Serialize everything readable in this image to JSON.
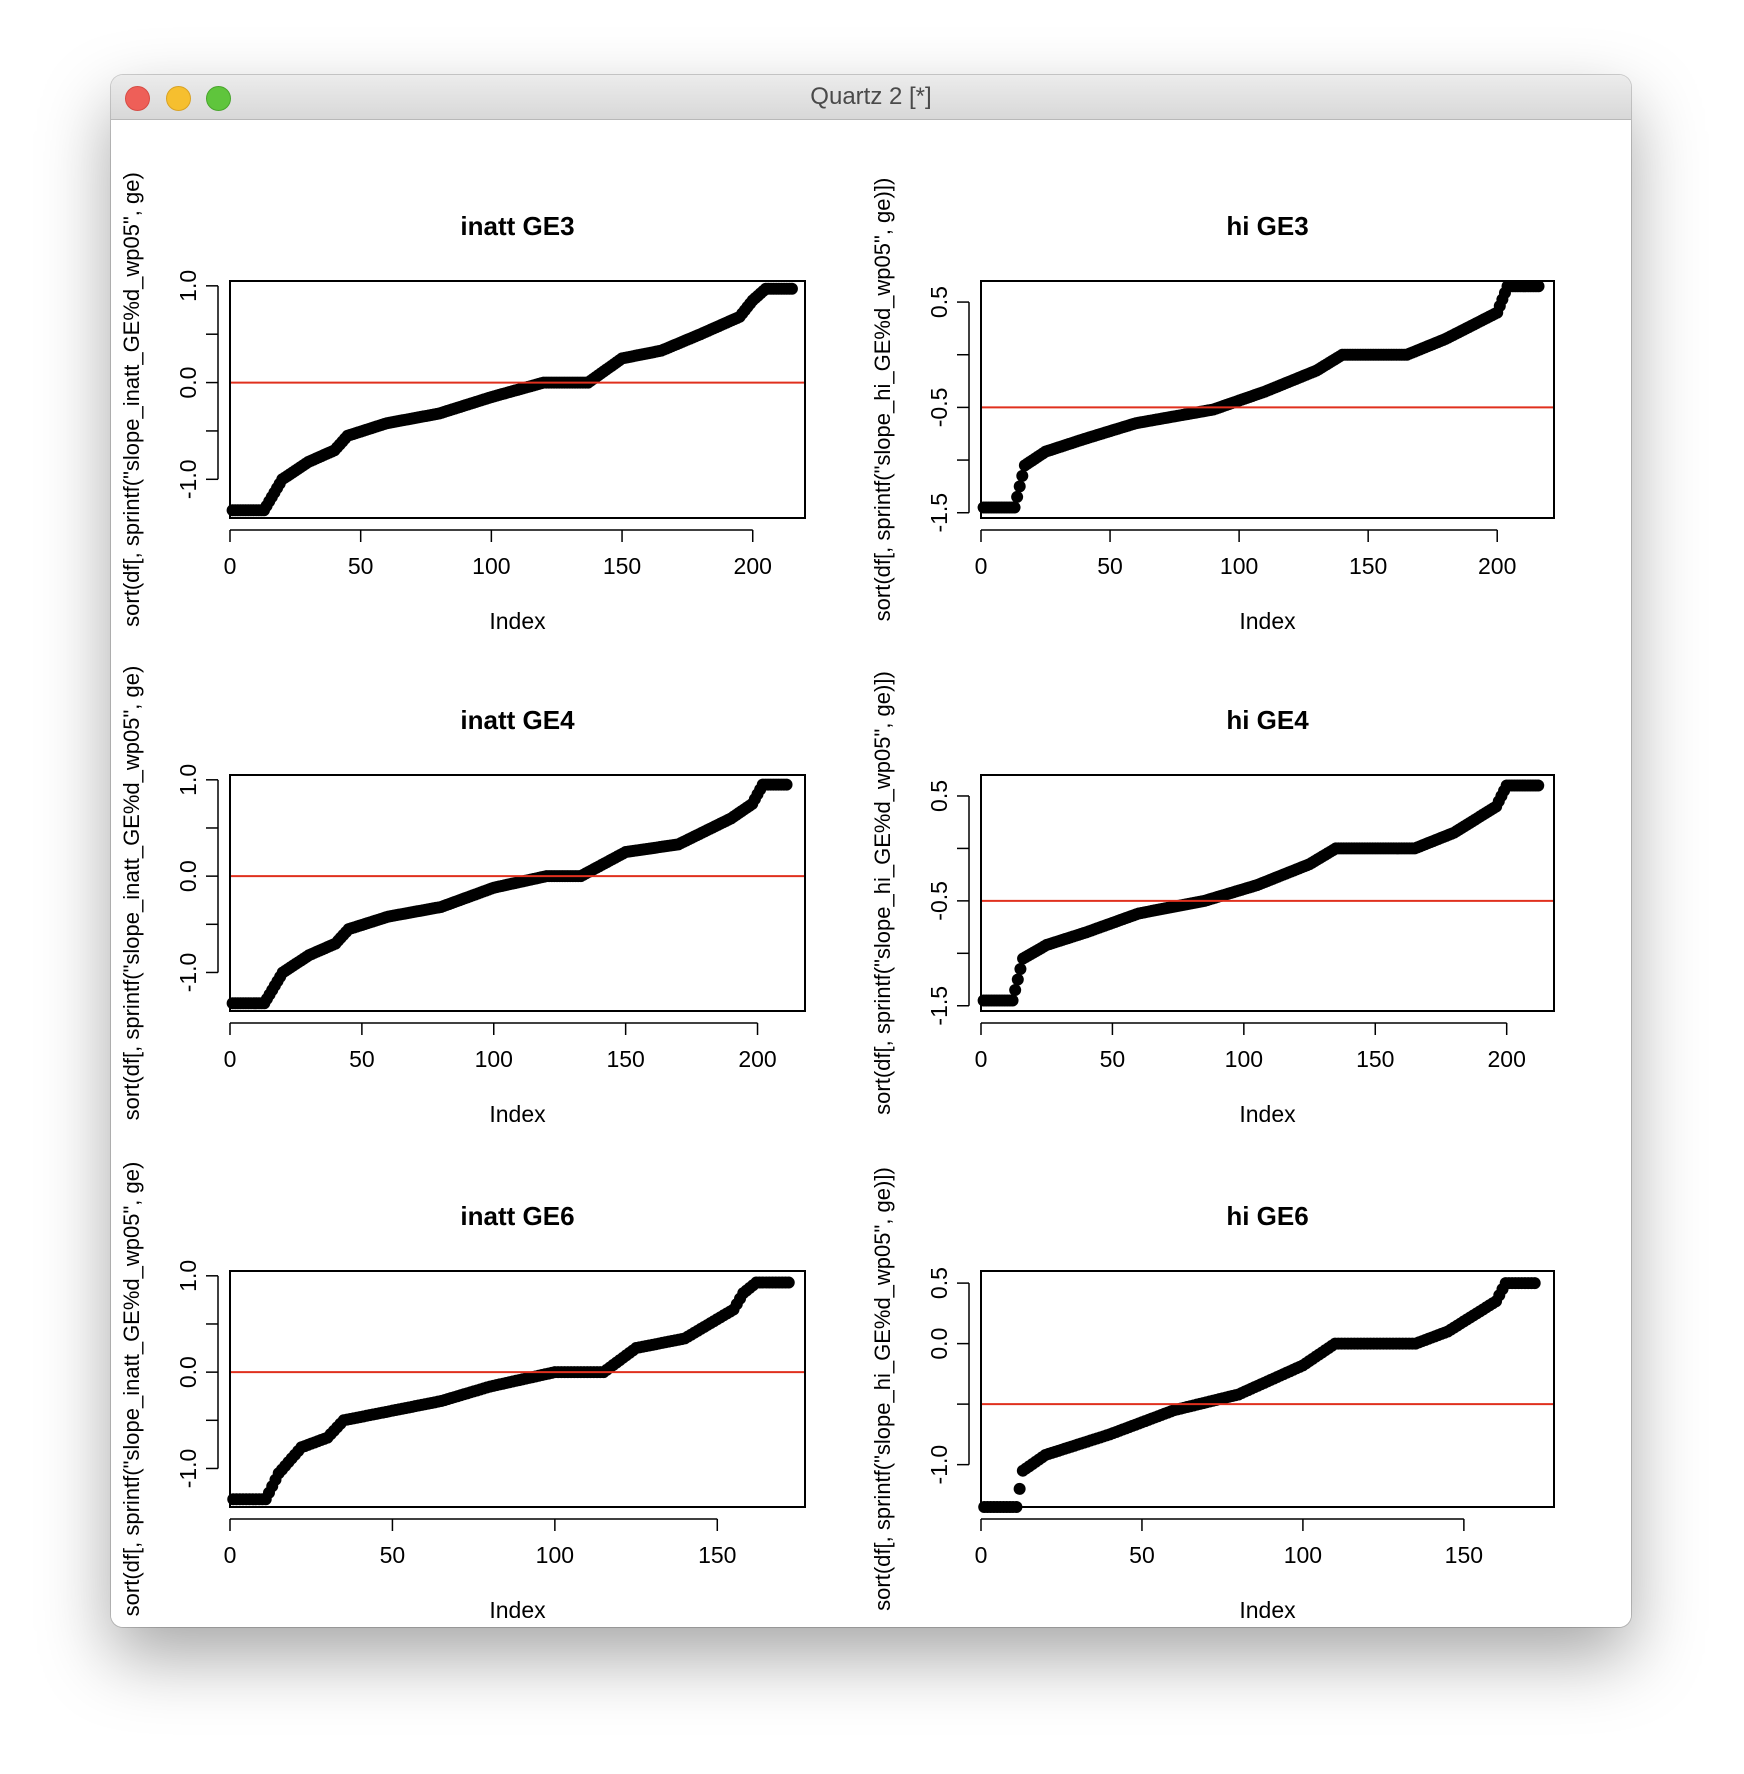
{
  "window": {
    "title": "Quartz 2 [*]"
  },
  "chart_data": [
    {
      "type": "scatter",
      "title": "inatt GE3",
      "xlabel": "Index",
      "ylabel": "sort(df[, sprintf(\"slope_inatt_GE%d_wp05\", ge)",
      "xlim": [
        0,
        220
      ],
      "ylim": [
        -1.4,
        1.05
      ],
      "xticks": [
        0,
        50,
        100,
        150,
        200
      ],
      "yticks": [
        -1.0,
        -0.5,
        0.0,
        0.5,
        1.0
      ],
      "ytick_labels": [
        "-1.0",
        "",
        "0.0",
        "",
        "1.0"
      ],
      "hline": 0.0,
      "hline_color": "#e0301e",
      "n": 215,
      "curve_x": [
        1,
        13,
        20,
        30,
        40,
        45,
        60,
        80,
        100,
        120,
        137,
        150,
        165,
        180,
        195,
        200,
        205,
        215
      ],
      "curve_y": [
        -1.32,
        -1.32,
        -1.0,
        -0.82,
        -0.7,
        -0.55,
        -0.42,
        -0.32,
        -0.15,
        0.0,
        0.0,
        0.25,
        0.33,
        0.5,
        0.68,
        0.85,
        0.97,
        0.97
      ]
    },
    {
      "type": "scatter",
      "title": "hi GE3",
      "xlabel": "Index",
      "ylabel": "sort(df[, sprintf(\"slope_hi_GE%d_wp05\", ge)])",
      "xlim": [
        0,
        222
      ],
      "ylim": [
        -1.55,
        0.7
      ],
      "xticks": [
        0,
        50,
        100,
        150,
        200
      ],
      "yticks": [
        -1.5,
        -1.0,
        -0.5,
        0.0,
        0.5
      ],
      "ytick_labels": [
        "-1.5",
        "",
        "-0.5",
        "",
        "0.5"
      ],
      "hline": -0.5,
      "hline_color": "#e0301e",
      "n": 216,
      "curve_x": [
        1,
        13,
        17,
        25,
        40,
        60,
        90,
        110,
        130,
        140,
        165,
        180,
        200,
        204,
        216
      ],
      "curve_y": [
        -1.45,
        -1.45,
        -1.05,
        -0.92,
        -0.8,
        -0.65,
        -0.52,
        -0.35,
        -0.15,
        0.0,
        0.0,
        0.15,
        0.4,
        0.65,
        0.65
      ]
    },
    {
      "type": "scatter",
      "title": "inatt GE4",
      "xlabel": "Index",
      "ylabel": "sort(df[, sprintf(\"slope_inatt_GE%d_wp05\", ge)",
      "xlim": [
        0,
        218
      ],
      "ylim": [
        -1.4,
        1.05
      ],
      "xticks": [
        0,
        50,
        100,
        150,
        200
      ],
      "yticks": [
        -1.0,
        -0.5,
        0.0,
        0.5,
        1.0
      ],
      "ytick_labels": [
        "-1.0",
        "",
        "0.0",
        "",
        "1.0"
      ],
      "hline": 0.0,
      "hline_color": "#e0301e",
      "n": 211,
      "curve_x": [
        1,
        13,
        20,
        30,
        40,
        45,
        60,
        80,
        100,
        120,
        133,
        150,
        170,
        190,
        198,
        202,
        211
      ],
      "curve_y": [
        -1.32,
        -1.32,
        -1.0,
        -0.82,
        -0.7,
        -0.55,
        -0.42,
        -0.32,
        -0.12,
        0.0,
        0.0,
        0.25,
        0.33,
        0.6,
        0.75,
        0.95,
        0.95
      ]
    },
    {
      "type": "scatter",
      "title": "hi GE4",
      "xlabel": "Index",
      "ylabel": "sort(df[, sprintf(\"slope_hi_GE%d_wp05\", ge)])",
      "xlim": [
        0,
        218
      ],
      "ylim": [
        -1.55,
        0.7
      ],
      "xticks": [
        0,
        50,
        100,
        150,
        200
      ],
      "yticks": [
        -1.5,
        -1.0,
        -0.5,
        0.0,
        0.5
      ],
      "ytick_labels": [
        "-1.5",
        "",
        "-0.5",
        "",
        "0.5"
      ],
      "hline": -0.5,
      "hline_color": "#e0301e",
      "n": 212,
      "curve_x": [
        1,
        12,
        16,
        25,
        40,
        60,
        85,
        105,
        125,
        135,
        165,
        180,
        196,
        200,
        212
      ],
      "curve_y": [
        -1.45,
        -1.45,
        -1.05,
        -0.92,
        -0.8,
        -0.62,
        -0.5,
        -0.35,
        -0.15,
        0.0,
        0.0,
        0.15,
        0.4,
        0.6,
        0.6
      ]
    },
    {
      "type": "scatter",
      "title": "inatt GE6",
      "xlabel": "Index",
      "ylabel": "sort(df[, sprintf(\"slope_inatt_GE%d_wp05\", ge)",
      "xlim": [
        0,
        177
      ],
      "ylim": [
        -1.4,
        1.05
      ],
      "xticks": [
        0,
        50,
        100,
        150
      ],
      "yticks": [
        -1.0,
        -0.5,
        0.0,
        0.5,
        1.0
      ],
      "ytick_labels": [
        "-1.0",
        "",
        "0.0",
        "",
        "1.0"
      ],
      "hline": 0.0,
      "hline_color": "#e0301e",
      "n": 172,
      "curve_x": [
        1,
        11,
        15,
        22,
        30,
        35,
        50,
        65,
        80,
        100,
        115,
        125,
        140,
        155,
        158,
        162,
        172
      ],
      "curve_y": [
        -1.32,
        -1.32,
        -1.05,
        -0.78,
        -0.68,
        -0.5,
        -0.4,
        -0.3,
        -0.15,
        0.0,
        0.0,
        0.25,
        0.35,
        0.65,
        0.82,
        0.93,
        0.93
      ]
    },
    {
      "type": "scatter",
      "title": "hi GE6",
      "xlabel": "Index",
      "ylabel": "sort(df[, sprintf(\"slope_hi_GE%d_wp05\", ge)])",
      "xlim": [
        0,
        178
      ],
      "ylim": [
        -1.35,
        0.6
      ],
      "xticks": [
        0,
        50,
        100,
        150
      ],
      "yticks": [
        -1.0,
        -0.5,
        0.0,
        0.5
      ],
      "ytick_labels": [
        "-1.0",
        "",
        "0.0",
        "0.5"
      ],
      "hline": -0.5,
      "hline_color": "#e0301e",
      "n": 172,
      "curve_x": [
        1,
        11,
        13,
        20,
        40,
        60,
        80,
        100,
        110,
        135,
        145,
        160,
        163,
        172
      ],
      "curve_y": [
        -1.35,
        -1.35,
        -1.05,
        -0.92,
        -0.75,
        -0.55,
        -0.42,
        -0.18,
        0.0,
        0.0,
        0.1,
        0.35,
        0.5,
        0.5
      ]
    }
  ]
}
